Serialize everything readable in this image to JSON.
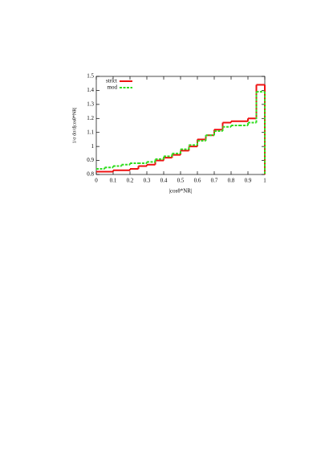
{
  "chart_data": {
    "type": "histogram-step",
    "bins": [
      0,
      0.05,
      0.1,
      0.15,
      0.2,
      0.25,
      0.3,
      0.35,
      0.4,
      0.45,
      0.5,
      0.55,
      0.6,
      0.65,
      0.7,
      0.75,
      0.8,
      0.85,
      0.9,
      0.95,
      1
    ],
    "series": [
      {
        "name": "strict",
        "color": "#ee1111",
        "dashed": false,
        "values": [
          0.82,
          0.82,
          0.83,
          0.83,
          0.84,
          0.86,
          0.87,
          0.9,
          0.92,
          0.94,
          0.97,
          1.0,
          1.05,
          1.08,
          1.12,
          1.17,
          1.18,
          1.18,
          1.2,
          1.44
        ]
      },
      {
        "name": "mod",
        "color": "#33dd22",
        "dashed": true,
        "values": [
          0.84,
          0.85,
          0.86,
          0.87,
          0.88,
          0.88,
          0.89,
          0.91,
          0.93,
          0.95,
          0.98,
          1.01,
          1.04,
          1.08,
          1.11,
          1.14,
          1.15,
          1.15,
          1.17,
          1.39
        ]
      }
    ],
    "x_label": "|cosθ*NR|",
    "y_label": "1/σ dσ/d|cosθ*NR|",
    "xlim": [
      0,
      1
    ],
    "ylim": [
      0.8,
      1.5
    ],
    "xticks": [
      0,
      0.1,
      0.2,
      0.3,
      0.4,
      0.5,
      0.6,
      0.7,
      0.8,
      0.9,
      1
    ],
    "yticks": [
      0.8,
      0.9,
      1,
      1.1,
      1.2,
      1.3,
      1.4,
      1.5
    ],
    "legend": "top-left"
  }
}
